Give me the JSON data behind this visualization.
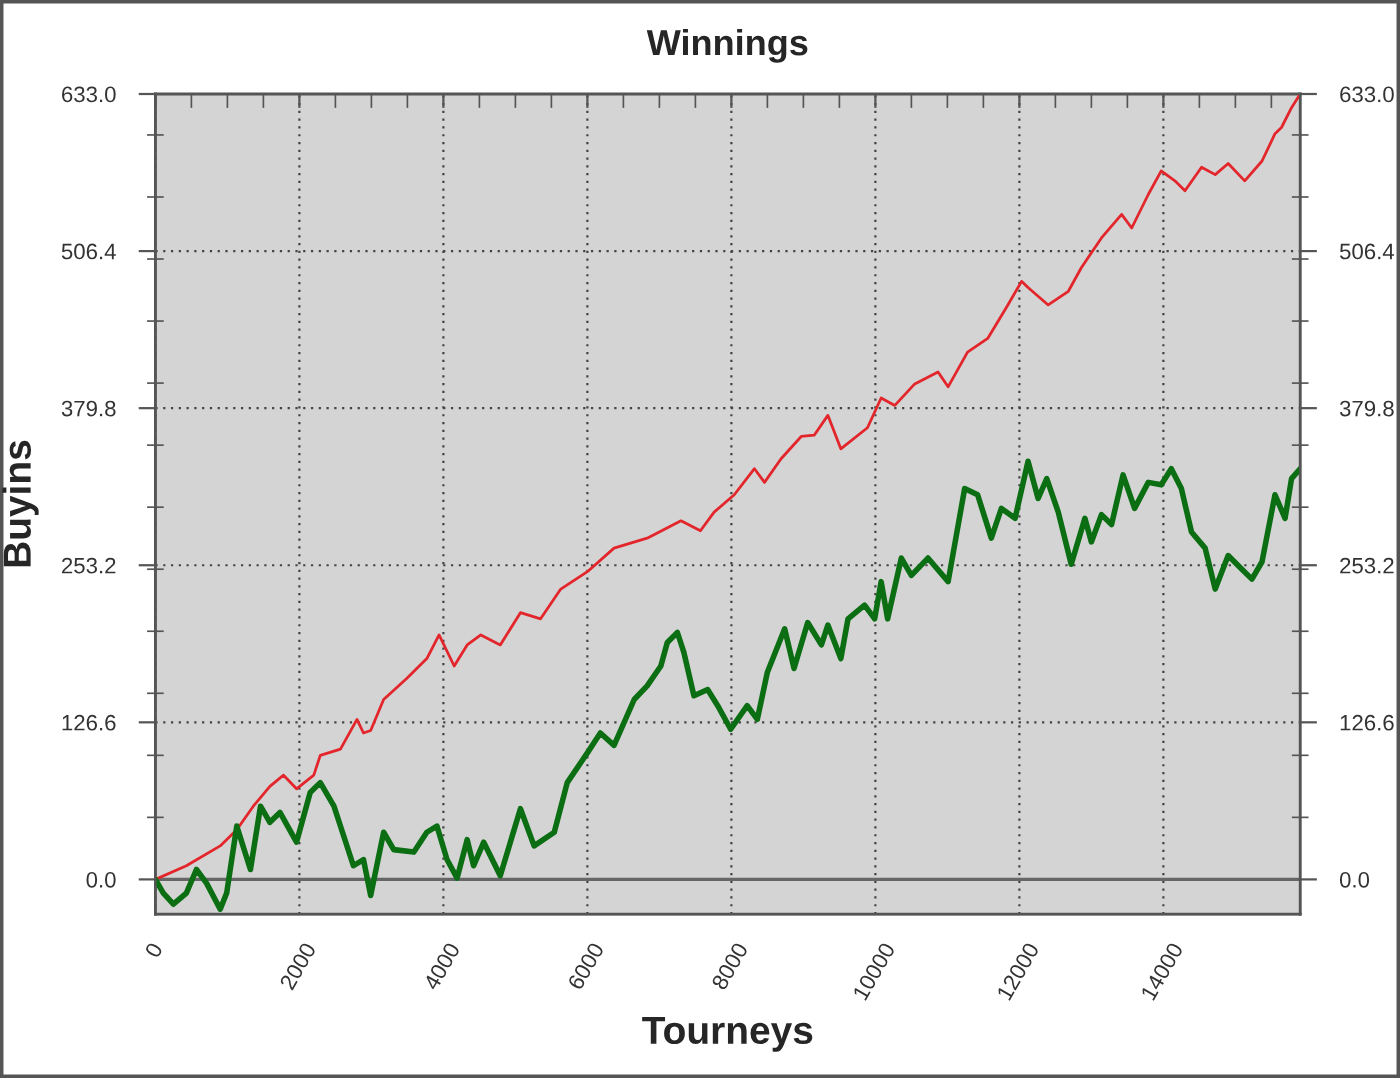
{
  "chart_data": {
    "type": "line",
    "title": "Winnings",
    "xlabel": "Tourneys",
    "ylabel": "Buyins",
    "series": [
      {
        "color": "#e3262b",
        "x": [
          0,
          430,
          900,
          1130,
          1360,
          1590,
          1780,
          1960,
          2200,
          2290,
          2570,
          2800,
          2890,
          2990,
          3170,
          3490,
          3770,
          3940,
          4150,
          4330,
          4520,
          4790,
          5070,
          5350,
          5630,
          6000,
          6370,
          6830,
          7300,
          7570,
          7760,
          8040,
          8320,
          8460,
          8690,
          8970,
          9150,
          9340,
          9520,
          9890,
          10080,
          10270,
          10540,
          10870,
          11010,
          11280,
          11560,
          11840,
          12030,
          12120,
          12400,
          12680,
          12860,
          13140,
          13420,
          13560,
          13790,
          13970,
          14160,
          14300,
          14530,
          14720,
          14900,
          15130,
          15370,
          15550,
          15640,
          15780,
          15900
        ],
        "values": [
          0,
          11,
          27,
          40,
          59,
          75,
          84,
          73,
          84,
          100,
          105,
          129,
          118,
          120,
          145,
          162,
          178,
          197,
          172,
          189,
          197,
          189,
          215,
          210,
          234,
          248,
          267,
          275,
          289,
          281,
          296,
          310,
          331,
          320,
          339,
          357,
          358,
          374,
          347,
          364,
          388,
          382,
          399,
          409,
          397,
          425,
          436,
          463,
          482,
          477,
          463,
          474,
          493,
          517,
          536,
          525,
          552,
          571,
          563,
          555,
          574,
          568,
          577,
          563,
          579,
          601,
          606,
          622,
          633
        ]
      },
      {
        "color": "#0b6e12",
        "x": [
          0,
          110,
          250,
          430,
          570,
          710,
          900,
          990,
          1130,
          1320,
          1460,
          1590,
          1730,
          1960,
          2150,
          2290,
          2480,
          2750,
          2890,
          2990,
          3170,
          3310,
          3590,
          3770,
          3910,
          4050,
          4190,
          4330,
          4420,
          4560,
          4790,
          5070,
          5260,
          5540,
          5720,
          6000,
          6180,
          6370,
          6650,
          6830,
          7020,
          7110,
          7250,
          7340,
          7480,
          7670,
          7810,
          7990,
          8220,
          8360,
          8500,
          8740,
          8870,
          9060,
          9250,
          9340,
          9520,
          9620,
          9850,
          9990,
          10080,
          10170,
          10360,
          10500,
          10730,
          11010,
          11240,
          11420,
          11610,
          11750,
          11940,
          12120,
          12260,
          12380,
          12540,
          12720,
          12910,
          13000,
          13140,
          13280,
          13440,
          13600,
          13790,
          13970,
          14110,
          14250,
          14390,
          14580,
          14720,
          14900,
          15090,
          15230,
          15370,
          15550,
          15690,
          15780,
          15900
        ],
        "values": [
          0,
          -11,
          -20,
          -11,
          8,
          -3,
          -24,
          -11,
          43,
          8,
          59,
          46,
          54,
          30,
          70,
          78,
          59,
          11,
          16,
          -13,
          38,
          24,
          22,
          38,
          43,
          16,
          1,
          32,
          11,
          30,
          3,
          57,
          27,
          38,
          78,
          102,
          118,
          108,
          145,
          156,
          172,
          191,
          199,
          183,
          148,
          153,
          140,
          121,
          140,
          129,
          167,
          202,
          170,
          207,
          189,
          205,
          178,
          210,
          221,
          210,
          240,
          210,
          259,
          245,
          259,
          240,
          315,
          310,
          275,
          299,
          291,
          337,
          307,
          323,
          296,
          254,
          291,
          272,
          294,
          286,
          326,
          299,
          320,
          318,
          331,
          315,
          280,
          267,
          234,
          261,
          250,
          242,
          256,
          310,
          291,
          323,
          331
        ]
      }
    ],
    "xlim": [
      0,
      15900
    ],
    "xticks": [
      {
        "value": 0,
        "label": "0"
      },
      {
        "value": 500,
        "label": null
      },
      {
        "value": 1000,
        "label": null
      },
      {
        "value": 1500,
        "label": null
      },
      {
        "value": 2000,
        "label": "2000"
      },
      {
        "value": 2500,
        "label": null
      },
      {
        "value": 3000,
        "label": null
      },
      {
        "value": 3500,
        "label": null
      },
      {
        "value": 4000,
        "label": "4000"
      },
      {
        "value": 4500,
        "label": null
      },
      {
        "value": 5000,
        "label": null
      },
      {
        "value": 5500,
        "label": null
      },
      {
        "value": 6000,
        "label": "6000"
      },
      {
        "value": 6500,
        "label": null
      },
      {
        "value": 7000,
        "label": null
      },
      {
        "value": 7500,
        "label": null
      },
      {
        "value": 8000,
        "label": "8000"
      },
      {
        "value": 8500,
        "label": null
      },
      {
        "value": 9000,
        "label": null
      },
      {
        "value": 9500,
        "label": null
      },
      {
        "value": 10000,
        "label": "10000"
      },
      {
        "value": 10500,
        "label": null
      },
      {
        "value": 11000,
        "label": null
      },
      {
        "value": 11500,
        "label": null
      },
      {
        "value": 12000,
        "label": "12000"
      },
      {
        "value": 12500,
        "label": null
      },
      {
        "value": 13000,
        "label": null
      },
      {
        "value": 13500,
        "label": null
      },
      {
        "value": 14000,
        "label": "14000"
      },
      {
        "value": 14500,
        "label": null
      },
      {
        "value": 15000,
        "label": null
      },
      {
        "value": 15500,
        "label": null
      }
    ],
    "ylim": [
      -28,
      633
    ],
    "yticks": [
      {
        "value": 0,
        "label": "0.0"
      },
      {
        "value": 50,
        "label": null
      },
      {
        "value": 100,
        "label": null
      },
      {
        "value": 126.6,
        "label": "126.6"
      },
      {
        "value": 150,
        "label": null
      },
      {
        "value": 200,
        "label": null
      },
      {
        "value": 250,
        "label": null
      },
      {
        "value": 253.2,
        "label": "253.2"
      },
      {
        "value": 300,
        "label": null
      },
      {
        "value": 350,
        "label": null
      },
      {
        "value": 379.8,
        "label": "379.8"
      },
      {
        "value": 400,
        "label": null
      },
      {
        "value": 450,
        "label": null
      },
      {
        "value": 500,
        "label": null
      },
      {
        "value": 506.4,
        "label": "506.4"
      },
      {
        "value": 550,
        "label": null
      },
      {
        "value": 600,
        "label": null
      },
      {
        "value": 633,
        "label": "633.0"
      }
    ],
    "y2lim": [
      -28,
      633
    ],
    "y2ticks": [
      {
        "value": 0,
        "label": "0.0"
      },
      {
        "value": 50,
        "label": null
      },
      {
        "value": 100,
        "label": null
      },
      {
        "value": 126.6,
        "label": "126.6"
      },
      {
        "value": 150,
        "label": null
      },
      {
        "value": 200,
        "label": null
      },
      {
        "value": 250,
        "label": null
      },
      {
        "value": 253.2,
        "label": "253.2"
      },
      {
        "value": 300,
        "label": null
      },
      {
        "value": 350,
        "label": null
      },
      {
        "value": 379.8,
        "label": "379.8"
      },
      {
        "value": 400,
        "label": null
      },
      {
        "value": 450,
        "label": null
      },
      {
        "value": 500,
        "label": null
      },
      {
        "value": 506.4,
        "label": "506.4"
      },
      {
        "value": 550,
        "label": null
      },
      {
        "value": 600,
        "label": null
      },
      {
        "value": 633,
        "label": "633.0"
      }
    ],
    "ref_lines": [
      {
        "axis": "y",
        "value": 0,
        "color": "#666666"
      }
    ],
    "grid": true
  }
}
